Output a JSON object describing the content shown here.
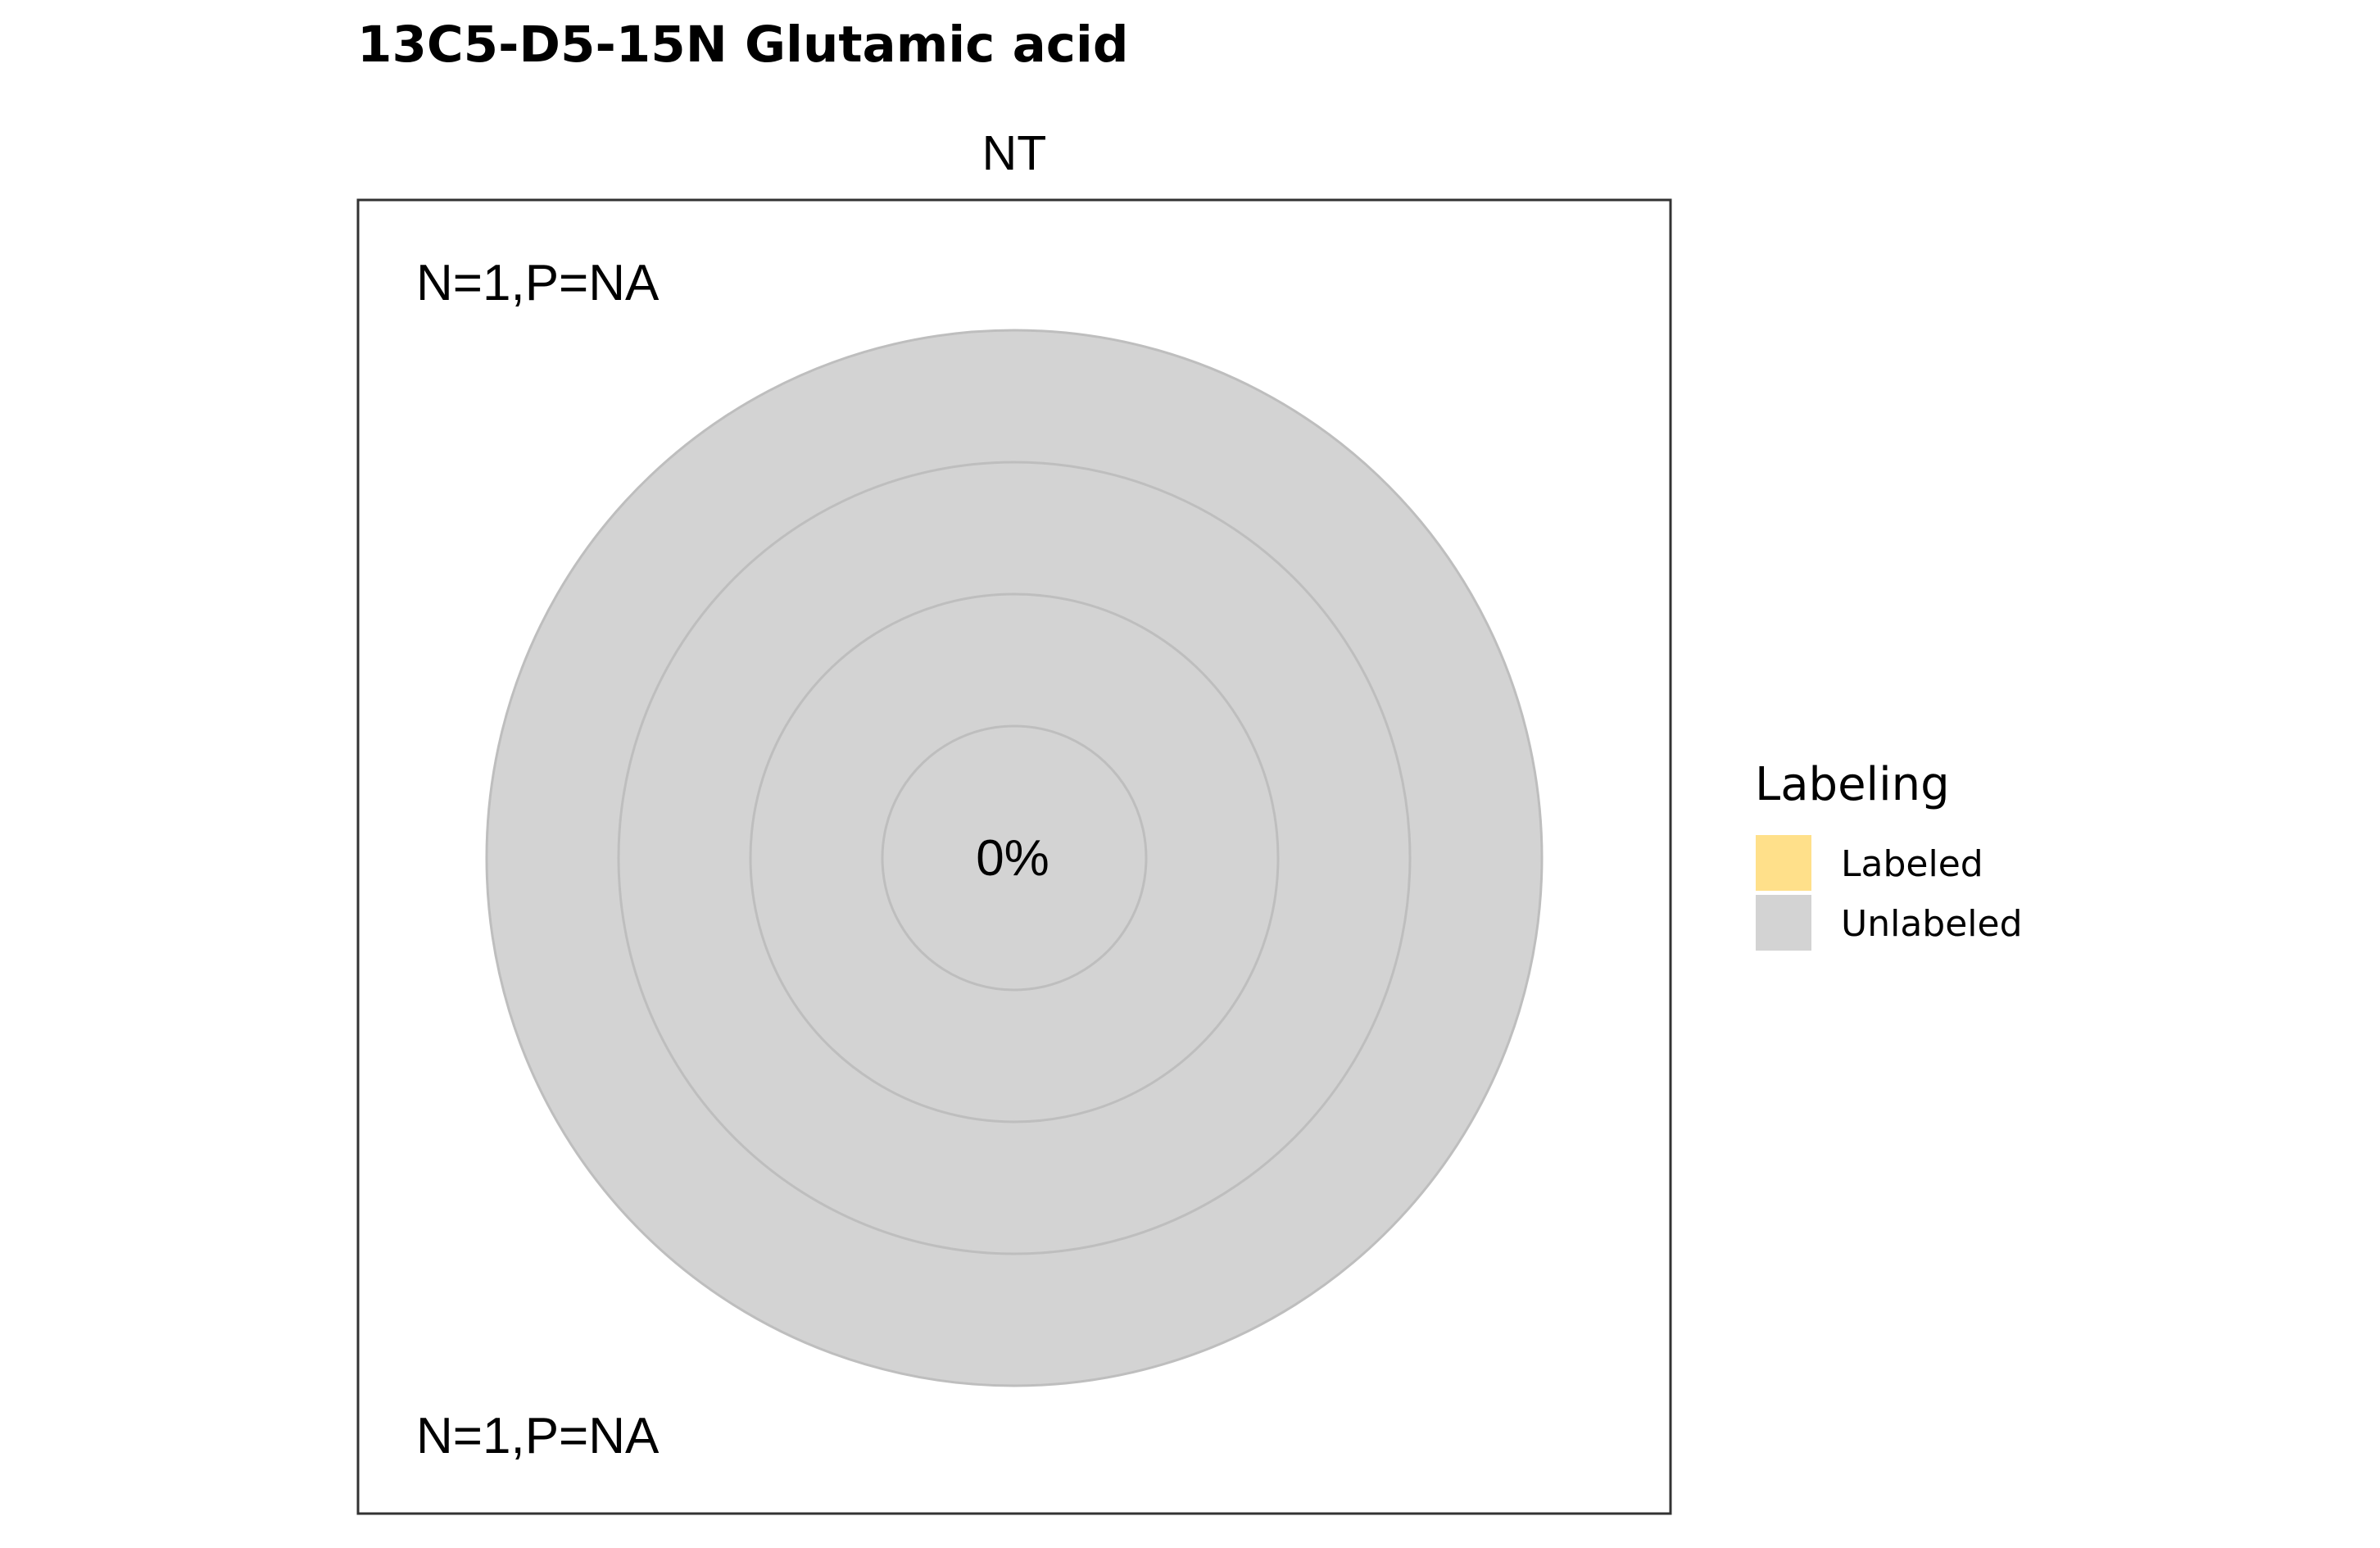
{
  "chart_data": {
    "type": "pie",
    "title": "13C5-D5-15N Glutamic acid",
    "facet": "NT",
    "center_label": "0%",
    "annotations": {
      "top": "N=1,P=NA",
      "bottom": "N=1,P=NA"
    },
    "rings": [
      {
        "ring": 1,
        "labeled": 0,
        "unlabeled": 1
      },
      {
        "ring": 2,
        "labeled": 0,
        "unlabeled": 1
      },
      {
        "ring": 3,
        "labeled": 0,
        "unlabeled": 1
      },
      {
        "ring": 4,
        "labeled": 0,
        "unlabeled": 1
      }
    ],
    "legend": {
      "title": "Labeling",
      "position": "right",
      "entries": [
        {
          "label": "Labeled",
          "color": "#FFE08A"
        },
        {
          "label": "Unlabeled",
          "color": "#D3D3D3"
        }
      ]
    },
    "colors": {
      "ring_stroke": "#BEBEBE",
      "panel_border": "#333333"
    }
  }
}
